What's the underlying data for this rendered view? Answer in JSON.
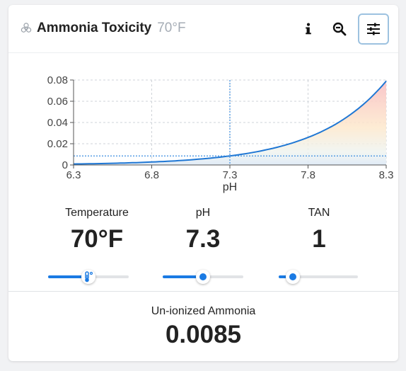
{
  "header": {
    "title": "Ammonia Toxicity",
    "subtitle": "70°F",
    "icons": {
      "title": "biohazard-icon",
      "info": "info-icon",
      "zoom": "zoom-out-icon",
      "settings": "sliders-icon"
    }
  },
  "chart_data": {
    "type": "area",
    "xlabel": "pH",
    "ylabel": "",
    "xlim": [
      6.3,
      8.3
    ],
    "ylim": [
      0,
      0.08
    ],
    "x_ticks": [
      "6.3",
      "6.8",
      "7.3",
      "7.8",
      "8.3"
    ],
    "y_ticks": [
      "0",
      "0.02",
      "0.04",
      "0.06",
      "0.08"
    ],
    "grid": true,
    "series": [
      {
        "x": [
          6.3,
          6.5,
          6.7,
          6.9,
          7.1,
          7.3,
          7.5,
          7.7,
          7.9,
          8.1,
          8.3
        ],
        "y": [
          0.0017,
          0.0027,
          0.0043,
          0.0068,
          0.0107,
          0.0085,
          0.0134,
          0.0211,
          0.033,
          0.051,
          0.079
        ]
      }
    ],
    "marker": {
      "x": 7.3,
      "y": 0.0085
    },
    "line_color": "#1f77d4"
  },
  "controls": {
    "temperature": {
      "label": "Temperature",
      "value": "70°F",
      "fraction": 0.5
    },
    "ph": {
      "label": "pH",
      "value": "7.3",
      "fraction": 0.5
    },
    "tan": {
      "label": "TAN",
      "value": "1",
      "fraction": 0.18
    }
  },
  "result": {
    "label": "Un-ionized Ammonia",
    "value": "0.0085"
  },
  "colors": {
    "accent": "#1a7ae3",
    "track": "#e1e3e6"
  }
}
